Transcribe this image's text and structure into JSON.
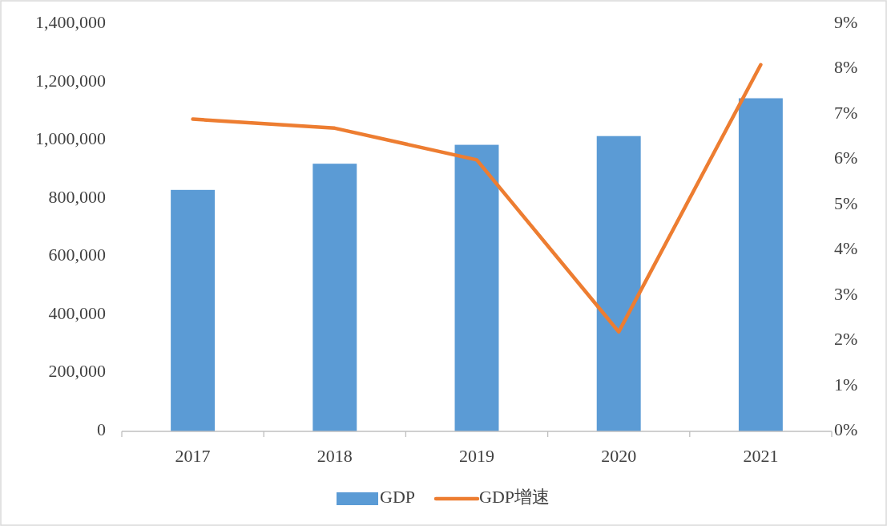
{
  "chart_data": {
    "type": "bar",
    "categories": [
      "2017",
      "2018",
      "2019",
      "2020",
      "2021"
    ],
    "series": [
      {
        "name": "GDP",
        "color": "#5b9bd5",
        "values": [
          830000,
          920000,
          985000,
          1015000,
          1145000
        ]
      },
      {
        "name": "GDP增速",
        "type": "line",
        "axis": "y2",
        "color": "#ed7d31",
        "values": [
          6.9,
          6.7,
          6.0,
          2.2,
          8.1
        ]
      }
    ],
    "ylim": [
      0,
      1400000
    ],
    "yticks": [
      {
        "value": 0,
        "label": "0"
      },
      {
        "value": 200000,
        "label": "200,000"
      },
      {
        "value": 400000,
        "label": "400,000"
      },
      {
        "value": 600000,
        "label": "600,000"
      },
      {
        "value": 800000,
        "label": "800,000"
      },
      {
        "value": 1000000,
        "label": "1,000,000"
      },
      {
        "value": 1200000,
        "label": "1,200,000"
      },
      {
        "value": 1400000,
        "label": "1,400,000"
      }
    ],
    "y2lim": [
      0,
      9
    ],
    "y2ticks": [
      {
        "value": 0,
        "label": "0%"
      },
      {
        "value": 1,
        "label": "1%"
      },
      {
        "value": 2,
        "label": "2%"
      },
      {
        "value": 3,
        "label": "3%"
      },
      {
        "value": 4,
        "label": "4%"
      },
      {
        "value": 5,
        "label": "5%"
      },
      {
        "value": 6,
        "label": "6%"
      },
      {
        "value": 7,
        "label": "7%"
      },
      {
        "value": 8,
        "label": "8%"
      },
      {
        "value": 9,
        "label": "9%"
      }
    ],
    "grid": false,
    "legend": "bottom"
  }
}
